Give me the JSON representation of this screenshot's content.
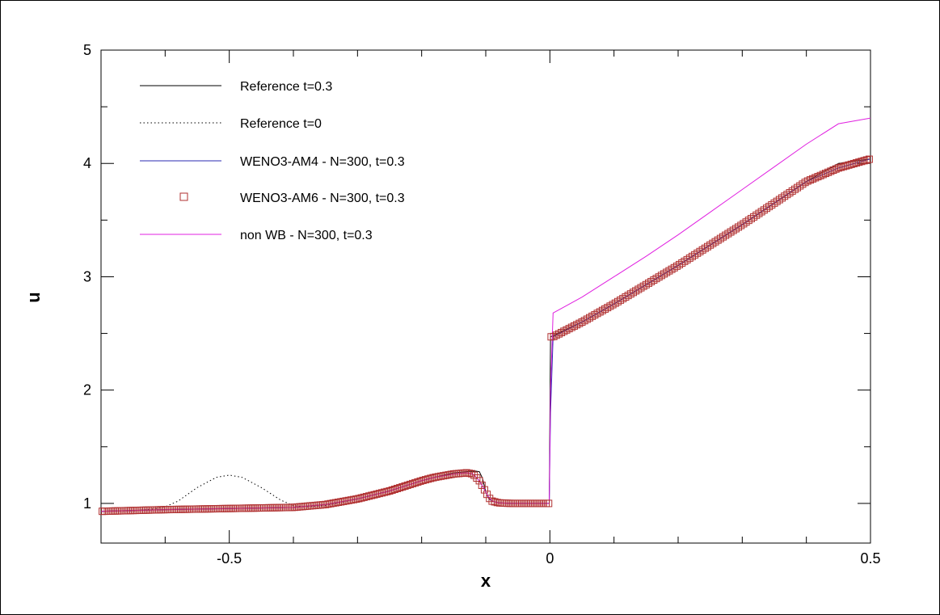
{
  "chart_data": {
    "type": "line",
    "xlabel": "x",
    "ylabel": "u",
    "xlim": [
      -0.7,
      0.5
    ],
    "ylim": [
      0.65,
      5
    ],
    "x_ticks": [
      -0.5,
      0,
      0.5
    ],
    "x_tick_labels": [
      "-0.5",
      "0",
      "0.5"
    ],
    "y_ticks": [
      1,
      2,
      3,
      4,
      5
    ],
    "y_tick_labels": [
      "1",
      "2",
      "3",
      "4",
      "5"
    ],
    "grid": false,
    "legend_position": "top-left",
    "series": [
      {
        "name": "Reference t=0.3",
        "style": "solid",
        "color": "#000000",
        "x": [
          -0.7,
          -0.6,
          -0.5,
          -0.4,
          -0.35,
          -0.3,
          -0.25,
          -0.2,
          -0.18,
          -0.15,
          -0.13,
          -0.12,
          -0.115,
          -0.11,
          -0.105,
          -0.1,
          -0.095,
          -0.09,
          -0.08,
          -0.06,
          -0.04,
          -0.02,
          -0.001,
          0.001,
          0.05,
          0.1,
          0.15,
          0.2,
          0.25,
          0.3,
          0.35,
          0.4,
          0.45,
          0.5
        ],
        "y": [
          0.93,
          0.945,
          0.955,
          0.965,
          0.99,
          1.04,
          1.11,
          1.2,
          1.23,
          1.27,
          1.28,
          1.285,
          1.285,
          1.28,
          1.22,
          1.1,
          1.04,
          1.02,
          1.005,
          1.0,
          1.0,
          1.0,
          1.0,
          2.47,
          2.6,
          2.76,
          2.93,
          3.1,
          3.28,
          3.46,
          3.65,
          3.84,
          4.0,
          4.04
        ]
      },
      {
        "name": "Reference t=0",
        "style": "dotted",
        "color": "#000000",
        "x": [
          -0.7,
          -0.65,
          -0.62,
          -0.6,
          -0.58,
          -0.55,
          -0.52,
          -0.5,
          -0.48,
          -0.45,
          -0.42,
          -0.4,
          -0.38,
          -0.35,
          -0.3,
          -0.25
        ],
        "y": [
          0.93,
          0.935,
          0.95,
          0.97,
          1.02,
          1.14,
          1.23,
          1.25,
          1.23,
          1.14,
          1.03,
          0.98,
          0.97,
          0.98,
          1.04,
          1.11
        ]
      },
      {
        "name": "WENO3-AM4 - N=300, t=0.3",
        "style": "solid",
        "color": "#2a2ab0",
        "x": [
          -0.7,
          -0.6,
          -0.5,
          -0.4,
          -0.35,
          -0.3,
          -0.25,
          -0.2,
          -0.18,
          -0.15,
          -0.13,
          -0.12,
          -0.11,
          -0.1,
          -0.095,
          -0.09,
          -0.08,
          -0.06,
          -0.04,
          -0.02,
          -0.001,
          0.001,
          0.005,
          0.05,
          0.1,
          0.15,
          0.2,
          0.25,
          0.3,
          0.35,
          0.4,
          0.45,
          0.5
        ],
        "y": [
          0.93,
          0.945,
          0.955,
          0.965,
          0.99,
          1.04,
          1.11,
          1.2,
          1.23,
          1.26,
          1.27,
          1.26,
          1.2,
          1.1,
          1.05,
          1.02,
          1.005,
          1.0,
          1.0,
          1.0,
          1.0,
          1.8,
          2.47,
          2.6,
          2.76,
          2.93,
          3.1,
          3.28,
          3.46,
          3.65,
          3.84,
          3.96,
          4.04
        ]
      },
      {
        "name": "WENO3-AM6 - N=300, t=0.3",
        "style": "square-markers",
        "color": "#b03030",
        "x_start": -0.7,
        "x_end": 0.5,
        "count": 300,
        "jump_x": 0.0,
        "y_ref": "same profile as WENO3-AM4 - N=300, t=0.3"
      },
      {
        "name": "non WB - N=300, t=0.3",
        "style": "solid",
        "color": "#e020e0",
        "x": [
          -0.7,
          -0.6,
          -0.5,
          -0.4,
          -0.35,
          -0.3,
          -0.25,
          -0.2,
          -0.18,
          -0.15,
          -0.13,
          -0.12,
          -0.11,
          -0.1,
          -0.095,
          -0.09,
          -0.08,
          -0.06,
          -0.04,
          -0.02,
          -0.001,
          0.001,
          0.005,
          0.05,
          0.1,
          0.15,
          0.2,
          0.25,
          0.3,
          0.35,
          0.4,
          0.45,
          0.5
        ],
        "y": [
          0.93,
          0.945,
          0.955,
          0.965,
          0.99,
          1.04,
          1.11,
          1.2,
          1.23,
          1.26,
          1.27,
          1.26,
          1.2,
          1.1,
          1.05,
          1.02,
          1.005,
          1.0,
          1.0,
          1.0,
          1.0,
          2.0,
          2.68,
          2.82,
          3.0,
          3.18,
          3.37,
          3.57,
          3.77,
          3.97,
          4.17,
          4.35,
          4.4
        ]
      }
    ],
    "legend": [
      {
        "label": "Reference t=0.3",
        "style": "solid",
        "color": "#000000"
      },
      {
        "label": "Reference t=0",
        "style": "dotted",
        "color": "#000000"
      },
      {
        "label": "WENO3-AM4 - N=300, t=0.3",
        "style": "solid",
        "color": "#2a2ab0"
      },
      {
        "label": "WENO3-AM6 - N=300, t=0.3",
        "style": "square-markers",
        "color": "#b03030"
      },
      {
        "label": "non WB - N=300, t=0.3",
        "style": "solid",
        "color": "#e020e0"
      }
    ]
  }
}
